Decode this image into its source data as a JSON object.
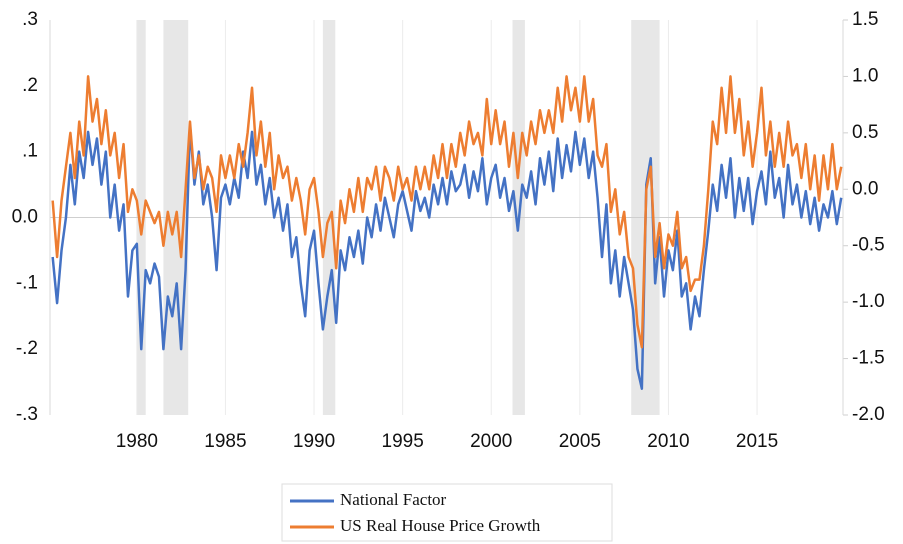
{
  "chart_data": {
    "type": "line",
    "x": [
      1975.25,
      1975.5,
      1975.75,
      1976,
      1976.25,
      1976.5,
      1976.75,
      1977,
      1977.25,
      1977.5,
      1977.75,
      1978,
      1978.25,
      1978.5,
      1978.75,
      1979,
      1979.25,
      1979.5,
      1979.75,
      1980,
      1980.25,
      1980.5,
      1980.75,
      1981,
      1981.25,
      1981.5,
      1981.75,
      1982,
      1982.25,
      1982.5,
      1982.75,
      1983,
      1983.25,
      1983.5,
      1983.75,
      1984,
      1984.25,
      1984.5,
      1984.75,
      1985,
      1985.25,
      1985.5,
      1985.75,
      1986,
      1986.25,
      1986.5,
      1986.75,
      1987,
      1987.25,
      1987.5,
      1987.75,
      1988,
      1988.25,
      1988.5,
      1988.75,
      1989,
      1989.25,
      1989.5,
      1989.75,
      1990,
      1990.25,
      1990.5,
      1990.75,
      1991,
      1991.25,
      1991.5,
      1991.75,
      1992,
      1992.25,
      1992.5,
      1992.75,
      1993,
      1993.25,
      1993.5,
      1993.75,
      1994,
      1994.25,
      1994.5,
      1994.75,
      1995,
      1995.25,
      1995.5,
      1995.75,
      1996,
      1996.25,
      1996.5,
      1996.75,
      1997,
      1997.25,
      1997.5,
      1997.75,
      1998,
      1998.25,
      1998.5,
      1998.75,
      1999,
      1999.25,
      1999.5,
      1999.75,
      2000,
      2000.25,
      2000.5,
      2000.75,
      2001,
      2001.25,
      2001.5,
      2001.75,
      2002,
      2002.25,
      2002.5,
      2002.75,
      2003,
      2003.25,
      2003.5,
      2003.75,
      2004,
      2004.25,
      2004.5,
      2004.75,
      2005,
      2005.25,
      2005.5,
      2005.75,
      2006,
      2006.25,
      2006.5,
      2006.75,
      2007,
      2007.25,
      2007.5,
      2007.75,
      2008,
      2008.25,
      2008.5,
      2008.75,
      2009,
      2009.25,
      2009.5,
      2009.75,
      2010,
      2010.25,
      2010.5,
      2010.75,
      2011,
      2011.25,
      2011.5,
      2011.75,
      2012,
      2012.25,
      2012.5,
      2012.75,
      2013,
      2013.25,
      2013.5,
      2013.75,
      2014,
      2014.25,
      2014.5,
      2014.75,
      2015,
      2015.25,
      2015.5,
      2015.75,
      2016,
      2016.25,
      2016.5,
      2016.75,
      2017,
      2017.25,
      2017.5,
      2017.75,
      2018,
      2018.25,
      2018.5,
      2018.75,
      2019,
      2019.25,
      2019.5,
      2019.75
    ],
    "series": [
      {
        "name": "National Factor",
        "color": "#4472c4",
        "axis": "y",
        "values": [
          -0.06,
          -0.13,
          -0.05,
          0.0,
          0.08,
          0.02,
          0.1,
          0.06,
          0.13,
          0.08,
          0.12,
          0.05,
          0.1,
          0.0,
          0.05,
          -0.02,
          0.02,
          -0.12,
          -0.05,
          -0.04,
          -0.2,
          -0.08,
          -0.1,
          -0.07,
          -0.09,
          -0.2,
          -0.12,
          -0.15,
          -0.1,
          -0.2,
          -0.08,
          0.14,
          0.05,
          0.1,
          0.02,
          0.05,
          0.0,
          -0.08,
          0.03,
          0.05,
          0.02,
          0.06,
          0.03,
          0.1,
          0.06,
          0.13,
          0.05,
          0.08,
          0.02,
          0.06,
          0.0,
          0.03,
          -0.02,
          0.02,
          -0.06,
          -0.03,
          -0.1,
          -0.15,
          -0.05,
          -0.02,
          -0.1,
          -0.17,
          -0.12,
          -0.08,
          -0.16,
          -0.05,
          -0.08,
          -0.03,
          -0.06,
          -0.02,
          -0.07,
          0.0,
          -0.03,
          0.02,
          -0.02,
          0.03,
          0.0,
          -0.03,
          0.02,
          0.04,
          0.01,
          -0.02,
          0.04,
          0.01,
          0.03,
          0.0,
          0.05,
          0.02,
          0.06,
          0.02,
          0.07,
          0.04,
          0.05,
          0.08,
          0.03,
          0.07,
          0.04,
          0.09,
          0.02,
          0.06,
          0.08,
          0.03,
          0.06,
          0.01,
          0.04,
          -0.02,
          0.05,
          0.03,
          0.07,
          0.02,
          0.09,
          0.05,
          0.1,
          0.04,
          0.12,
          0.06,
          0.11,
          0.07,
          0.13,
          0.08,
          0.12,
          0.06,
          0.1,
          0.03,
          -0.06,
          0.02,
          -0.1,
          -0.05,
          -0.12,
          -0.06,
          -0.1,
          -0.14,
          -0.23,
          -0.26,
          0.05,
          0.09,
          -0.1,
          -0.03,
          -0.12,
          -0.05,
          -0.08,
          -0.02,
          -0.12,
          -0.1,
          -0.17,
          -0.12,
          -0.15,
          -0.08,
          -0.02,
          0.05,
          0.01,
          0.08,
          0.03,
          0.09,
          0.0,
          0.06,
          0.01,
          0.06,
          -0.01,
          0.04,
          0.07,
          0.02,
          0.1,
          0.03,
          0.06,
          0.0,
          0.08,
          0.02,
          0.05,
          0.0,
          0.04,
          -0.01,
          0.03,
          -0.02,
          0.02,
          0.0,
          0.04,
          -0.01,
          0.03
        ]
      },
      {
        "name": "US Real House Price Growth",
        "color": "#ed7d31",
        "axis": "y2",
        "values": [
          -0.1,
          -0.6,
          -0.1,
          0.2,
          0.5,
          0.1,
          0.6,
          0.3,
          1.0,
          0.6,
          0.8,
          0.4,
          0.7,
          0.3,
          0.5,
          0.1,
          0.4,
          -0.2,
          0.0,
          -0.1,
          -0.4,
          -0.1,
          -0.2,
          -0.3,
          -0.2,
          -0.5,
          -0.2,
          -0.4,
          -0.2,
          -0.6,
          0.0,
          0.6,
          0.1,
          0.3,
          0.0,
          0.2,
          0.1,
          -0.2,
          0.3,
          0.1,
          0.3,
          0.1,
          0.4,
          0.2,
          0.5,
          0.9,
          0.3,
          0.6,
          0.2,
          0.5,
          0.0,
          0.3,
          0.1,
          0.2,
          -0.1,
          0.1,
          -0.1,
          -0.4,
          0.0,
          0.1,
          -0.2,
          -0.6,
          -0.3,
          -0.2,
          -0.7,
          -0.1,
          -0.3,
          0.0,
          -0.2,
          0.1,
          -0.2,
          0.1,
          0.0,
          0.2,
          -0.1,
          0.2,
          0.1,
          -0.1,
          0.2,
          0.0,
          0.1,
          -0.1,
          0.2,
          0.0,
          0.2,
          0.0,
          0.3,
          0.1,
          0.4,
          0.1,
          0.4,
          0.2,
          0.5,
          0.3,
          0.6,
          0.4,
          0.5,
          0.3,
          0.8,
          0.4,
          0.7,
          0.4,
          0.6,
          0.2,
          0.5,
          0.1,
          0.5,
          0.3,
          0.6,
          0.4,
          0.7,
          0.5,
          0.7,
          0.5,
          0.9,
          0.6,
          1.0,
          0.7,
          0.9,
          0.6,
          1.0,
          0.6,
          0.8,
          0.3,
          0.2,
          0.4,
          -0.2,
          0.0,
          -0.4,
          -0.2,
          -0.6,
          -0.7,
          -1.2,
          -1.4,
          0.0,
          0.2,
          -0.6,
          -0.3,
          -0.7,
          -0.4,
          -0.5,
          -0.2,
          -0.7,
          -0.6,
          -0.9,
          -0.8,
          -0.8,
          -0.5,
          0.0,
          0.6,
          0.4,
          0.9,
          0.5,
          1.0,
          0.5,
          0.8,
          0.3,
          0.6,
          0.2,
          0.5,
          0.9,
          0.3,
          0.6,
          0.2,
          0.5,
          0.2,
          0.6,
          0.3,
          0.4,
          0.1,
          0.4,
          0.0,
          0.3,
          -0.1,
          0.3,
          0.0,
          0.4,
          0.0,
          0.2
        ]
      }
    ],
    "shaded_periods": [
      [
        1980.0,
        1980.5
      ],
      [
        1981.5,
        1982.9
      ],
      [
        1990.5,
        1991.2
      ],
      [
        2001.2,
        2001.9
      ],
      [
        2007.9,
        2009.5
      ]
    ],
    "xlim": [
      1975.1,
      2019.85
    ],
    "xticks": [
      1980,
      1985,
      1990,
      1995,
      2000,
      2005,
      2010,
      2015
    ],
    "ylim": [
      -0.3,
      0.3
    ],
    "yticks": [
      {
        "value": 0.3,
        "label": ".3"
      },
      {
        "value": 0.2,
        "label": ".2"
      },
      {
        "value": 0.1,
        "label": ".1"
      },
      {
        "value": 0,
        "label": "0.0"
      },
      {
        "value": -0.1,
        "label": "-.1"
      },
      {
        "value": -0.2,
        "label": "-.2"
      },
      {
        "value": -0.3,
        "label": "-.3"
      }
    ],
    "y2lim": [
      -2,
      1.5
    ],
    "y2ticks": [
      1.5,
      {
        "value": 1,
        "label": "1.0"
      },
      {
        "value": 0.5,
        "label": "0.5"
      },
      {
        "value": 0,
        "label": "0.0"
      },
      {
        "value": -0.5,
        "label": "-0.5"
      },
      {
        "value": -1,
        "label": "-1.0"
      },
      -1.5,
      {
        "value": -2,
        "label": "-2.0"
      }
    ],
    "grid": true,
    "legend": "bottom"
  }
}
